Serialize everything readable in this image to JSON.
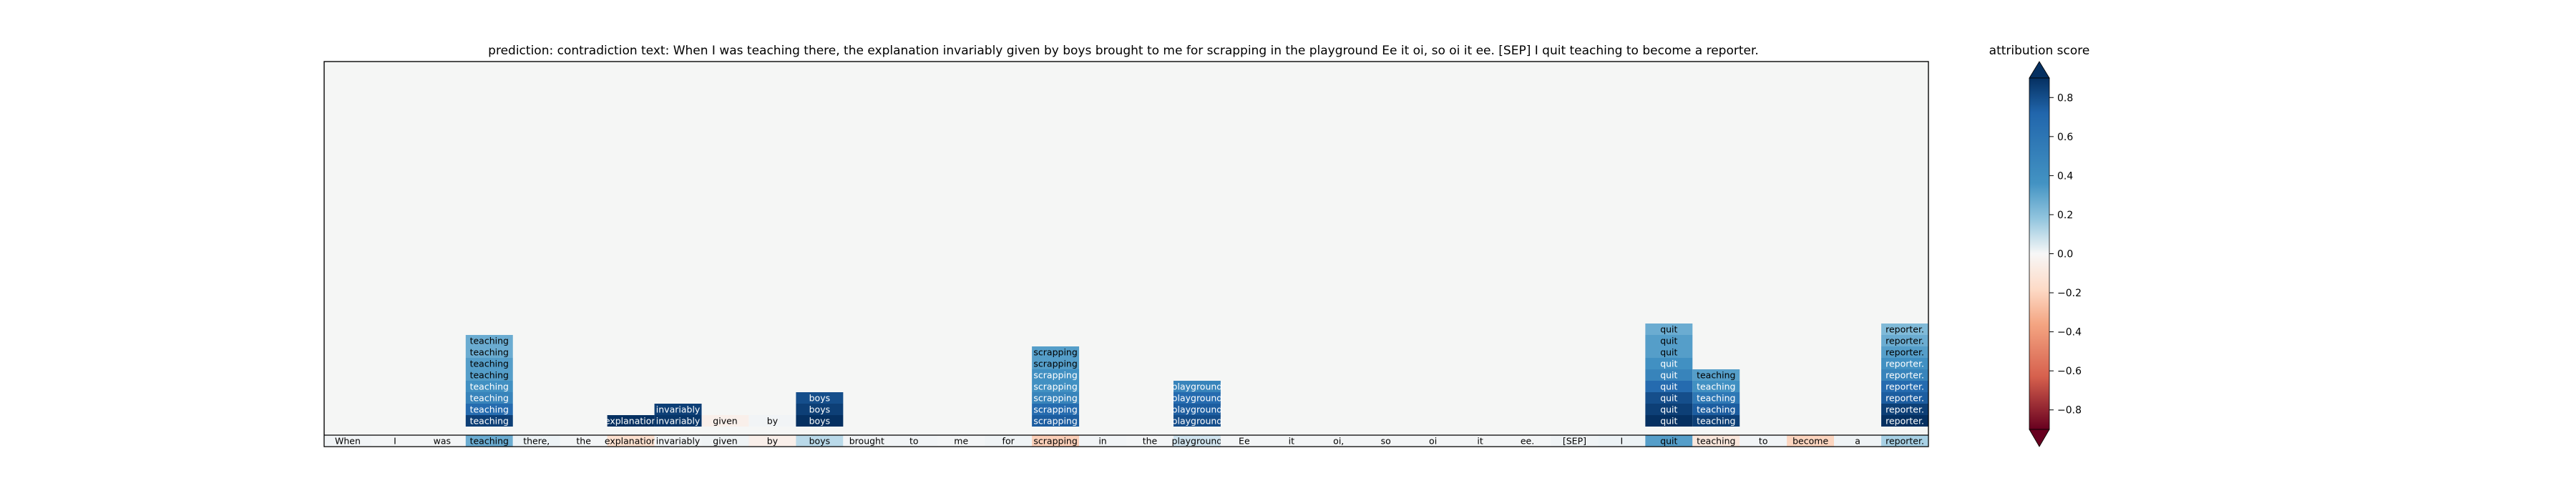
{
  "chart_data": {
    "type": "heatmap",
    "title": "prediction:  contradiction      text:  When I was teaching there, the explanation invariably given by boys brought to me for scrapping in the playground Ee it oi, so oi it ee. [SEP] I quit teaching to become a reporter.",
    "tokens": [
      "When",
      "I",
      "was",
      "teaching",
      "there,",
      "the",
      "explanation",
      "invariably",
      "given",
      "by",
      "boys",
      "brought",
      "to",
      "me",
      "for",
      "scrapping",
      "in",
      "the",
      "playground",
      "Ee",
      "it",
      "oi,",
      "so",
      "oi",
      "it",
      "ee.",
      "[SEP]",
      "I",
      "quit",
      "teaching",
      "to",
      "become",
      "a",
      "reporter."
    ],
    "base_scores": [
      0.03,
      0.02,
      0.02,
      0.45,
      0.05,
      0.02,
      -0.15,
      0.03,
      0.04,
      -0.05,
      0.25,
      0.03,
      0.03,
      0.02,
      0.04,
      -0.22,
      0.03,
      0.02,
      0.18,
      0.02,
      0.02,
      0.02,
      0.02,
      0.02,
      0.02,
      0.02,
      0.04,
      0.05,
      0.5,
      -0.1,
      0.03,
      -0.2,
      0.04,
      0.3
    ],
    "stacks": [
      {
        "token_index": 3,
        "label": "teaching",
        "scores": [
          0.85,
          0.7,
          0.6,
          0.55,
          0.5,
          0.5,
          0.45,
          0.45
        ]
      },
      {
        "token_index": 6,
        "label": "explanation",
        "scores": [
          0.9
        ]
      },
      {
        "token_index": 7,
        "label": "invariably",
        "scores": [
          0.88,
          0.85
        ]
      },
      {
        "token_index": 8,
        "label": "given",
        "scores": [
          -0.05
        ]
      },
      {
        "token_index": 9,
        "label": "by",
        "scores": [
          0.03
        ]
      },
      {
        "token_index": 10,
        "label": "boys",
        "scores": [
          0.9,
          0.85,
          0.8
        ]
      },
      {
        "token_index": 15,
        "label": "scrapping",
        "scores": [
          0.75,
          0.7,
          0.6,
          0.55,
          0.55,
          0.5,
          0.5
        ]
      },
      {
        "token_index": 18,
        "label": "playground",
        "scores": [
          0.8,
          0.75,
          0.7,
          0.6
        ]
      },
      {
        "token_index": 28,
        "label": "quit",
        "scores": [
          0.9,
          0.85,
          0.8,
          0.7,
          0.6,
          0.55,
          0.5,
          0.5,
          0.45
        ]
      },
      {
        "token_index": 29,
        "label": "teaching",
        "scores": [
          0.85,
          0.75,
          0.65,
          0.55,
          0.5
        ]
      },
      {
        "token_index": 33,
        "label": "reporter.",
        "scores": [
          0.9,
          0.85,
          0.75,
          0.7,
          0.6,
          0.55,
          0.5,
          0.45,
          0.4
        ]
      }
    ],
    "colorbar": {
      "label": "attribution score",
      "ticks": [
        "0.8",
        "0.6",
        "0.4",
        "0.2",
        "0.0",
        "−0.2",
        "−0.4",
        "−0.6",
        "−0.8"
      ],
      "tick_values": [
        0.8,
        0.6,
        0.4,
        0.2,
        0.0,
        -0.2,
        -0.4,
        -0.6,
        -0.8
      ],
      "range": [
        -0.9,
        0.9
      ],
      "colormap": "RdBu"
    }
  }
}
